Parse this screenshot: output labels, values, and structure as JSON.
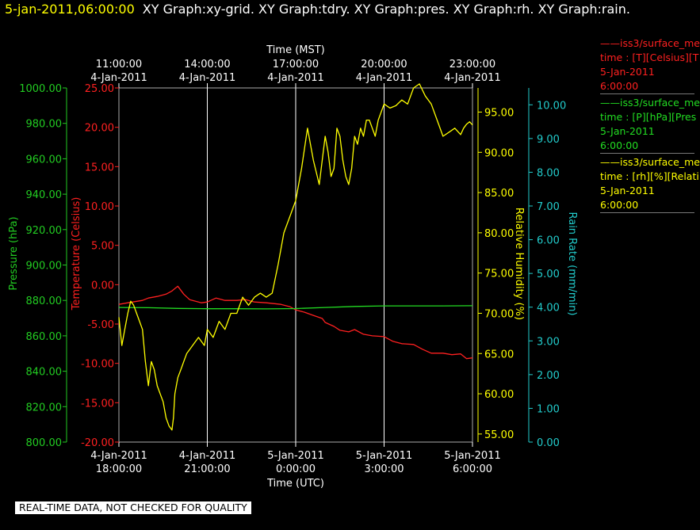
{
  "header": {
    "timestamp": "5-jan-2011,06:00:00",
    "graphs": "XY Graph:xy-grid.  XY Graph:tdry.  XY Graph:pres.  XY Graph:rh.  XY Graph:rain."
  },
  "legend": [
    {
      "color": "#ff2020",
      "lines": [
        "——iss3/surface_me",
        "time : [T][Celsius][T",
        "5-Jan-2011",
        "6:00:00"
      ]
    },
    {
      "color": "#22dd22",
      "lines": [
        "——iss3/surface_me",
        "time : [P][hPa][Pres",
        "5-Jan-2011",
        "6:00:00"
      ]
    },
    {
      "color": "#ffff00",
      "lines": [
        "——iss3/surface_me",
        "time : [rh][%][Relati",
        "5-Jan-2011",
        "6:00:00"
      ]
    }
  ],
  "disclaimer": "REAL-TIME DATA, NOT CHECKED FOR QUALITY",
  "chart_data": {
    "type": "line",
    "top_axis": {
      "title": "Time (MST)",
      "ticks": [
        {
          "line1": "11:00:00",
          "line2": "4-Jan-2011",
          "x": 0
        },
        {
          "line1": "14:00:00",
          "line2": "4-Jan-2011",
          "x": 3
        },
        {
          "line1": "17:00:00",
          "line2": "4-Jan-2011",
          "x": 6
        },
        {
          "line1": "20:00:00",
          "line2": "4-Jan-2011",
          "x": 9
        },
        {
          "line1": "23:00:00",
          "line2": "4-Jan-2011",
          "x": 12
        }
      ]
    },
    "bottom_axis": {
      "title": "Time (UTC)",
      "ticks": [
        {
          "line1": "4-Jan-2011",
          "line2": "18:00:00",
          "x": 0
        },
        {
          "line1": "4-Jan-2011",
          "line2": "21:00:00",
          "x": 3
        },
        {
          "line1": "5-Jan-2011",
          "line2": "0:00:00",
          "x": 6
        },
        {
          "line1": "5-Jan-2011",
          "line2": "3:00:00",
          "x": 9
        },
        {
          "line1": "5-Jan-2011",
          "line2": "6:00:00",
          "x": 12
        }
      ]
    },
    "xlim": [
      0,
      12
    ],
    "grid": true,
    "y_axes": [
      {
        "id": "pres",
        "label": "Pressure (hPa)",
        "color": "#22cc22",
        "range": [
          800,
          1000
        ],
        "ticks": [
          "800.00",
          "820.00",
          "840.00",
          "860.00",
          "880.00",
          "900.00",
          "920.00",
          "940.00",
          "960.00",
          "980.00",
          "1000.00"
        ]
      },
      {
        "id": "temp",
        "label": "Temperature (Celsius)",
        "color": "#ff2020",
        "range": [
          -20,
          25
        ],
        "ticks": [
          "-20.00",
          "-15.00",
          "-10.00",
          "-5.00",
          "0.00",
          "5.00",
          "10.00",
          "15.00",
          "20.00",
          "25.00"
        ]
      },
      {
        "id": "rh",
        "label": "Relative Humidity (%)",
        "color": "#ffff00",
        "range": [
          54,
          98
        ],
        "ticks": [
          "55.00",
          "60.00",
          "65.00",
          "70.00",
          "75.00",
          "80.00",
          "85.00",
          "90.00",
          "95.00"
        ]
      },
      {
        "id": "rain",
        "label": "Rain Rate (mm/min)",
        "color": "#22cccc",
        "range": [
          0,
          10.5
        ],
        "ticks": [
          "0.00",
          "1.00",
          "2.00",
          "3.00",
          "4.00",
          "5.00",
          "6.00",
          "7.00",
          "8.00",
          "9.00",
          "10.00"
        ]
      }
    ],
    "series": [
      {
        "axis": "temp",
        "color": "#ff2020",
        "x": [
          0,
          0.3,
          0.8,
          1.0,
          1.3,
          1.6,
          1.8,
          2.0,
          2.2,
          2.4,
          2.8,
          3.0,
          3.3,
          3.6,
          4.0,
          4.3,
          4.6,
          5.0,
          5.5,
          5.8,
          6.0,
          6.3,
          6.6,
          6.9,
          7.0,
          7.3,
          7.5,
          7.8,
          8.0,
          8.3,
          8.6,
          9.0,
          9.3,
          9.6,
          10.0,
          10.3,
          10.6,
          11.0,
          11.3,
          11.6,
          11.8,
          12.0
        ],
        "y": [
          -2.5,
          -2.3,
          -2.0,
          -1.7,
          -1.5,
          -1.2,
          -0.8,
          -0.2,
          -1.2,
          -1.9,
          -2.3,
          -2.2,
          -1.7,
          -2.0,
          -2.0,
          -1.9,
          -2.2,
          -2.3,
          -2.5,
          -2.8,
          -3.2,
          -3.5,
          -3.9,
          -4.3,
          -4.8,
          -5.3,
          -5.8,
          -6.0,
          -5.7,
          -6.3,
          -6.5,
          -6.6,
          -7.2,
          -7.5,
          -7.6,
          -8.2,
          -8.7,
          -8.7,
          -8.9,
          -8.8,
          -9.4,
          -9.3
        ]
      },
      {
        "axis": "pres",
        "color": "#22dd22",
        "x": [
          0,
          1,
          2,
          3,
          4,
          5,
          6,
          7,
          8,
          9,
          10,
          11,
          12
        ],
        "y": [
          876.0,
          875.9,
          875.5,
          875.3,
          875.3,
          875.2,
          875.4,
          876.0,
          876.6,
          876.9,
          876.9,
          876.9,
          877.0
        ]
      },
      {
        "axis": "rh",
        "color": "#ffff00",
        "x": [
          0,
          0.1,
          0.2,
          0.3,
          0.4,
          0.5,
          0.6,
          0.7,
          0.8,
          0.9,
          1.0,
          1.05,
          1.1,
          1.2,
          1.3,
          1.4,
          1.5,
          1.6,
          1.7,
          1.8,
          1.85,
          1.9,
          2.0,
          2.1,
          2.2,
          2.3,
          2.4,
          2.5,
          2.7,
          2.9,
          3.0,
          3.2,
          3.4,
          3.6,
          3.8,
          4.0,
          4.2,
          4.4,
          4.6,
          4.8,
          5.0,
          5.2,
          5.4,
          5.6,
          5.8,
          6.0,
          6.2,
          6.4,
          6.6,
          6.8,
          7.0,
          7.1,
          7.2,
          7.3,
          7.4,
          7.5,
          7.6,
          7.7,
          7.8,
          7.9,
          8.0,
          8.1,
          8.2,
          8.3,
          8.4,
          8.5,
          8.6,
          8.7,
          8.8,
          8.9,
          9.0,
          9.2,
          9.4,
          9.6,
          9.8,
          10.0,
          10.2,
          10.4,
          10.6,
          10.8,
          11.0,
          11.2,
          11.4,
          11.6,
          11.7,
          11.8,
          11.9,
          12.0
        ],
        "y": [
          69.5,
          66,
          68,
          70,
          71.5,
          71,
          70,
          69,
          68,
          64,
          61,
          62.5,
          64,
          63,
          61,
          60,
          59,
          57,
          56,
          55.5,
          57,
          60,
          62,
          63,
          64,
          65,
          65.5,
          66,
          67,
          66,
          68,
          67,
          69,
          68,
          70,
          70,
          72,
          71,
          72,
          72.5,
          72,
          72.5,
          76,
          80,
          82,
          84,
          88,
          93,
          89,
          86,
          92,
          90,
          87,
          88,
          93,
          92,
          89,
          87,
          86,
          88,
          92,
          91,
          93,
          92,
          94,
          94,
          93,
          92,
          94,
          95,
          96,
          95.5,
          95.8,
          96.5,
          96,
          98,
          98.5,
          97,
          96,
          94,
          92,
          92.5,
          93,
          92.2,
          93,
          93.5,
          93.8,
          93.4
        ]
      },
      {
        "axis": "rain",
        "color": "#22cccc",
        "x": [],
        "y": []
      }
    ]
  }
}
